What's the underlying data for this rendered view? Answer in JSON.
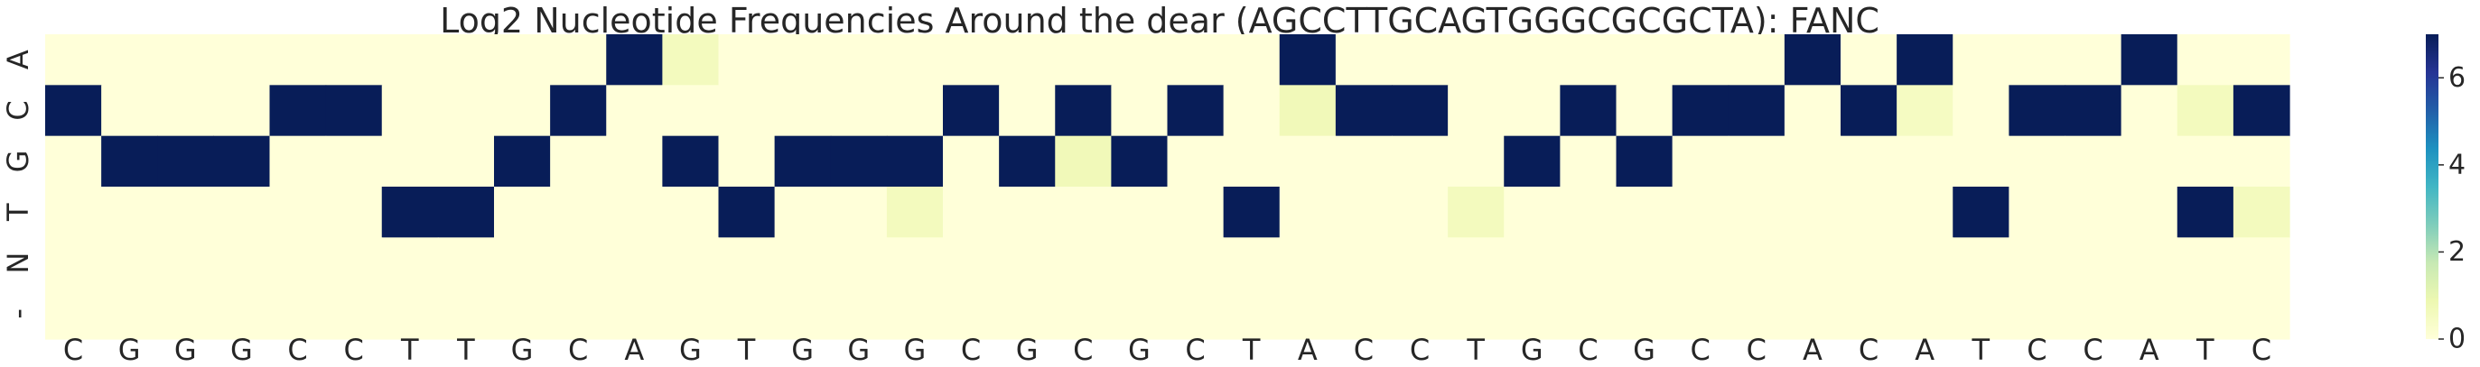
{
  "chart_data": {
    "type": "heatmap",
    "title": "Log2 Nucleotide Frequencies Around the dear (AGCCTTGCAGTGGGCGCGCTA): FANC",
    "xlabel": "",
    "ylabel": "",
    "rows": [
      "A",
      "C",
      "G",
      "T",
      "N",
      "-"
    ],
    "columns": [
      "C",
      "G",
      "G",
      "G",
      "C",
      "C",
      "T",
      "T",
      "G",
      "C",
      "A",
      "G",
      "T",
      "G",
      "G",
      "G",
      "C",
      "G",
      "C",
      "G",
      "C",
      "T",
      "A",
      "C",
      "C",
      "T",
      "G",
      "C",
      "G",
      "C",
      "C",
      "A",
      "C",
      "A",
      "T",
      "C",
      "C",
      "A",
      "T",
      "C"
    ],
    "values": [
      [
        0,
        0,
        0,
        0,
        0,
        0,
        0,
        0,
        0,
        0,
        7,
        0.6,
        0,
        0,
        0,
        0,
        0,
        0,
        0,
        0,
        0,
        0,
        7,
        0,
        0,
        0,
        0,
        0,
        0,
        0,
        0,
        7,
        0,
        7,
        0,
        0,
        0,
        7,
        0,
        0
      ],
      [
        7,
        0,
        0,
        0,
        7,
        7,
        0,
        0,
        0,
        7,
        0,
        0,
        0,
        0,
        0,
        0,
        7,
        0,
        7,
        0,
        7,
        0,
        0.7,
        7,
        7,
        0,
        0,
        7,
        0,
        7,
        7,
        0,
        7,
        0.5,
        0,
        7,
        7,
        0,
        0.6,
        7
      ],
      [
        0,
        7,
        7,
        7,
        0,
        0,
        0,
        0,
        7,
        0,
        0,
        7,
        0,
        7,
        7,
        7,
        0,
        7,
        0.7,
        7,
        0,
        0,
        0,
        0,
        0,
        0,
        7,
        0,
        7,
        0,
        0,
        0,
        0,
        0,
        0,
        0,
        0,
        0,
        0,
        0
      ],
      [
        0,
        0,
        0,
        0,
        0,
        0,
        7,
        7,
        0,
        0,
        0,
        0,
        7,
        0,
        0,
        0.6,
        0,
        0,
        0,
        0,
        0,
        7,
        0,
        0,
        0,
        0.6,
        0,
        0,
        0,
        0,
        0,
        0,
        0,
        0,
        7,
        0,
        0,
        0,
        7,
        0.6
      ],
      [
        0,
        0,
        0,
        0,
        0,
        0,
        0,
        0,
        0,
        0,
        0,
        0,
        0,
        0,
        0,
        0,
        0,
        0,
        0,
        0,
        0,
        0,
        0,
        0,
        0,
        0,
        0,
        0,
        0,
        0,
        0,
        0,
        0,
        0,
        0,
        0,
        0,
        0,
        0,
        0
      ],
      [
        0,
        0,
        0,
        0,
        0,
        0,
        0,
        0,
        0,
        0,
        0,
        0,
        0,
        0,
        0,
        0,
        0,
        0,
        0,
        0,
        0,
        0,
        0,
        0,
        0,
        0,
        0,
        0,
        0,
        0,
        0,
        0,
        0,
        0,
        0,
        0,
        0,
        0,
        0,
        0
      ]
    ],
    "vmin": 0,
    "vmax": 7,
    "colormap": "YlGnBu",
    "colorbar_ticks": [
      0,
      2,
      4,
      6
    ],
    "grid": false
  }
}
